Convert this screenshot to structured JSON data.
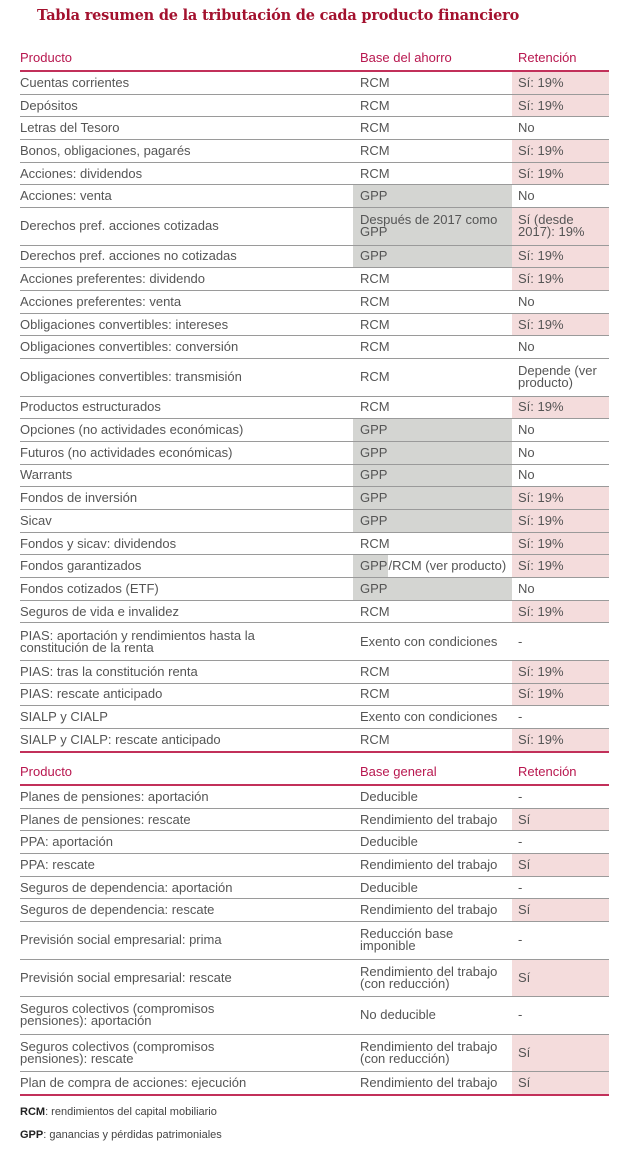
{
  "title": "Tabla resumen de la tributación de cada producto financiero",
  "colors": {
    "title": "#a3112e",
    "header": "#b8174f",
    "gray_cell": "#d4d5d2",
    "pink_cell": "#f4dcdc"
  },
  "section1": {
    "headers": {
      "product": "Producto",
      "base": "Base del ahorro",
      "retention": "Retención"
    },
    "rows": [
      {
        "product": "Cuentas corrientes",
        "base": "RCM",
        "retention": "Sí: 19%",
        "base_gray": false,
        "ret_pink": true
      },
      {
        "product": "Depósitos",
        "base": "RCM",
        "retention": "Sí: 19%",
        "base_gray": false,
        "ret_pink": true
      },
      {
        "product": "Letras del Tesoro",
        "base": "RCM",
        "retention": "No",
        "base_gray": false,
        "ret_pink": false
      },
      {
        "product": "Bonos, obligaciones, pagarés",
        "base": "RCM",
        "retention": "Sí: 19%",
        "base_gray": false,
        "ret_pink": true
      },
      {
        "product": "Acciones: dividendos",
        "base": "RCM",
        "retention": "Sí: 19%",
        "base_gray": false,
        "ret_pink": true
      },
      {
        "product": "Acciones: venta",
        "base": "GPP",
        "retention": "No",
        "base_gray": true,
        "ret_pink": false
      },
      {
        "product": "Derechos pref. acciones cotizadas",
        "base": "Después de 2017 como GPP",
        "retention": "Sí (desde 2017): 19%",
        "base_gray": true,
        "ret_pink": true,
        "double": true
      },
      {
        "product": "Derechos pref. acciones no cotizadas",
        "base": "GPP",
        "retention": "Sí: 19%",
        "base_gray": true,
        "ret_pink": true
      },
      {
        "product": "Acciones preferentes: dividendo",
        "base": "RCM",
        "retention": "Sí: 19%",
        "base_gray": false,
        "ret_pink": true
      },
      {
        "product": "Acciones preferentes: venta",
        "base": "RCM",
        "retention": "No",
        "base_gray": false,
        "ret_pink": false
      },
      {
        "product": "Obligaciones convertibles: intereses",
        "base": "RCM",
        "retention": "Sí: 19%",
        "base_gray": false,
        "ret_pink": true
      },
      {
        "product": "Obligaciones convertibles: conversión",
        "base": "RCM",
        "retention": "No",
        "base_gray": false,
        "ret_pink": false
      },
      {
        "product": "Obligaciones convertibles: transmisión",
        "base": "RCM",
        "retention": "Depende (ver producto)",
        "base_gray": false,
        "ret_pink": false,
        "double": true
      },
      {
        "product": "Productos estructurados",
        "base": "RCM",
        "retention": "Sí: 19%",
        "base_gray": false,
        "ret_pink": true
      },
      {
        "product": "Opciones (no actividades económicas)",
        "base": "GPP",
        "retention": "No",
        "base_gray": true,
        "ret_pink": false
      },
      {
        "product": "Futuros (no actividades económicas)",
        "base": "GPP",
        "retention": "No",
        "base_gray": true,
        "ret_pink": false
      },
      {
        "product": "Warrants",
        "base": "GPP",
        "retention": "No",
        "base_gray": true,
        "ret_pink": false
      },
      {
        "product": "Fondos de inversión",
        "base": "GPP",
        "retention": "Sí: 19%",
        "base_gray": true,
        "ret_pink": true
      },
      {
        "product": "Sicav",
        "base": "GPP",
        "retention": "Sí: 19%",
        "base_gray": true,
        "ret_pink": true
      },
      {
        "product": "Fondos y sicav: dividendos",
        "base": "RCM",
        "retention": "Sí: 19%",
        "base_gray": false,
        "ret_pink": true
      },
      {
        "product": "Fondos garantizados",
        "base_part_gray": "GPP",
        "base": "/RCM (ver producto)",
        "retention": "Sí: 19%",
        "base_gray": false,
        "ret_pink": true
      },
      {
        "product": "Fondos cotizados (ETF)",
        "base": "GPP",
        "retention": "No",
        "base_gray": true,
        "ret_pink": false
      },
      {
        "product": "Seguros de vida e invalidez",
        "base": "RCM",
        "retention": "Sí: 19%",
        "base_gray": false,
        "ret_pink": true
      },
      {
        "product": "PIAS: aportación y rendimientos hasta la constitución de la renta",
        "base": "Exento con condiciones",
        "retention": "-",
        "base_gray": false,
        "ret_pink": false,
        "double": true
      },
      {
        "product": "PIAS: tras la constitución renta",
        "base": "RCM",
        "retention": "Sí: 19%",
        "base_gray": false,
        "ret_pink": true
      },
      {
        "product": "PIAS: rescate anticipado",
        "base": "RCM",
        "retention": "Sí: 19%",
        "base_gray": false,
        "ret_pink": true
      },
      {
        "product": "SIALP y CIALP",
        "base": "Exento con condiciones",
        "retention": "-",
        "base_gray": false,
        "ret_pink": false
      },
      {
        "product": "SIALP y CIALP: rescate anticipado",
        "base": "RCM",
        "retention": "Sí: 19%",
        "base_gray": false,
        "ret_pink": true
      }
    ]
  },
  "section2": {
    "headers": {
      "product": "Producto",
      "base": "Base general",
      "retention": "Retención"
    },
    "rows": [
      {
        "product": "Planes de pensiones: aportación",
        "base": "Deducible",
        "retention": "-",
        "ret_pink": false
      },
      {
        "product": "Planes de pensiones: rescate",
        "base": "Rendimiento del trabajo",
        "retention": "Sí",
        "ret_pink": true
      },
      {
        "product": "PPA: aportación",
        "base": "Deducible",
        "retention": "-",
        "ret_pink": false
      },
      {
        "product": "PPA: rescate",
        "base": "Rendimiento del trabajo",
        "retention": "Sí",
        "ret_pink": true
      },
      {
        "product": "Seguros de dependencia: aportación",
        "base": "Deducible",
        "retention": "-",
        "ret_pink": false
      },
      {
        "product": "Seguros de dependencia: rescate",
        "base": "Rendimiento del trabajo",
        "retention": "Sí",
        "ret_pink": true
      },
      {
        "product": "Previsión social empresarial: prima",
        "base": "Reducción base imponible",
        "retention": "-",
        "ret_pink": false,
        "double": true
      },
      {
        "product": "Previsión social empresarial: rescate",
        "base": "Rendimiento del trabajo (con reducción)",
        "retention": "Sí",
        "ret_pink": true,
        "double": true
      },
      {
        "product": "Seguros colectivos (compromisos pensiones): aportación",
        "base": "No deducible",
        "retention": "-",
        "ret_pink": false,
        "double": true
      },
      {
        "product": "Seguros colectivos (compromisos pensiones): rescate",
        "base": "Rendimiento del trabajo (con reducción)",
        "retention": "Sí",
        "ret_pink": true,
        "double": true
      },
      {
        "product": "Plan de compra de acciones: ejecución",
        "base": "Rendimiento del trabajo",
        "retention": "Sí",
        "ret_pink": true
      }
    ]
  },
  "legend": [
    {
      "abbr": "RCM",
      "text": ": rendimientos del capital mobiliario"
    },
    {
      "abbr": "GPP",
      "text": ": ganancias y pérdidas patrimoniales"
    }
  ]
}
